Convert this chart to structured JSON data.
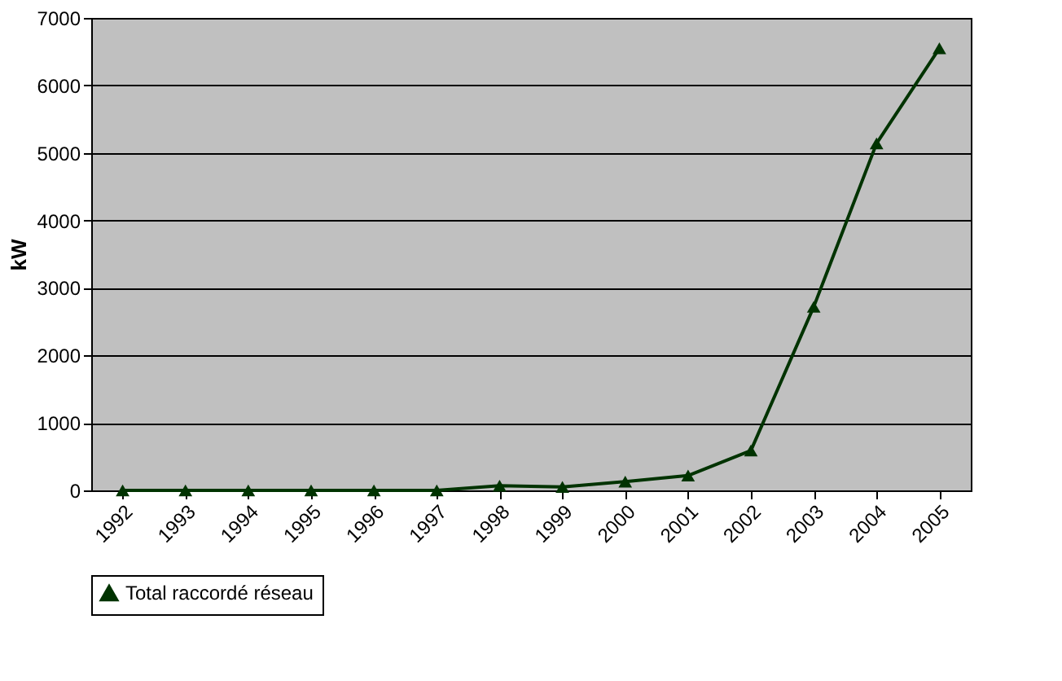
{
  "chart_data": {
    "type": "line",
    "ylabel": "kW",
    "categories": [
      "1992",
      "1993",
      "1994",
      "1995",
      "1996",
      "1997",
      "1998",
      "1999",
      "2000",
      "2001",
      "2002",
      "2003",
      "2004",
      "2005"
    ],
    "series": [
      {
        "name": "Total raccordé réseau",
        "color": "#003300",
        "values": [
          0,
          0,
          0,
          0,
          0,
          0,
          70,
          50,
          130,
          220,
          590,
          2720,
          5140,
          6550
        ]
      }
    ],
    "ylim": [
      0,
      7000
    ],
    "yticks": [
      0,
      1000,
      2000,
      3000,
      4000,
      5000,
      6000,
      7000
    ],
    "grid": "y",
    "legend": "bottom",
    "marker": "triangle",
    "line_style": "solid"
  }
}
